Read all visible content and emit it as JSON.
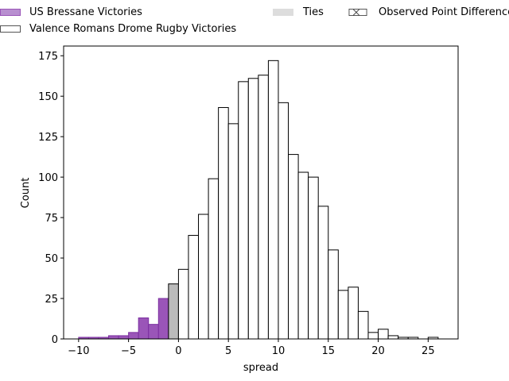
{
  "chart_data": {
    "type": "bar",
    "xlabel": "spread",
    "ylabel": "Count",
    "xlim": [
      -11.5,
      28
    ],
    "ylim": [
      0,
      181
    ],
    "xticks": [
      -10,
      -5,
      0,
      5,
      10,
      15,
      20,
      25
    ],
    "yticks": [
      0,
      25,
      50,
      75,
      100,
      125,
      150,
      175
    ],
    "legend": [
      {
        "label": "US Bressane Victories",
        "color": "#b88fd0",
        "edge": "#9a55b8"
      },
      {
        "label": "Valence Romans Drome Rugby Victories",
        "color": "#ffffff",
        "edge": "#555555"
      },
      {
        "label": "Ties",
        "color": "#dddddd",
        "edge": "#dddddd"
      },
      {
        "label": "Observed Point Difference",
        "color": "#ffffff",
        "edge": "#333333",
        "hatch": "x"
      }
    ],
    "legend_placement": "top, above plot",
    "bin_width": 1,
    "series": [
      {
        "name": "US Bressane Victories",
        "color": "#9a55b8",
        "edge": "#7b2fa0",
        "bins": [
          {
            "x": -9.5,
            "count": 1
          },
          {
            "x": -8.5,
            "count": 1
          },
          {
            "x": -7.5,
            "count": 1
          },
          {
            "x": -6.5,
            "count": 2
          },
          {
            "x": -5.5,
            "count": 2
          },
          {
            "x": -4.5,
            "count": 4
          },
          {
            "x": -3.5,
            "count": 13
          },
          {
            "x": -2.5,
            "count": 9
          },
          {
            "x": -1.5,
            "count": 25
          }
        ]
      },
      {
        "name": "Ties",
        "color": "#bbbbbb",
        "edge": "#000000",
        "bins": [
          {
            "x": -0.5,
            "count": 34
          }
        ]
      },
      {
        "name": "Valence Romans Drome Rugby Victories",
        "color": "#ffffff",
        "edge": "#000000",
        "bins": [
          {
            "x": 0.5,
            "count": 43
          },
          {
            "x": 1.5,
            "count": 64
          },
          {
            "x": 2.5,
            "count": 77
          },
          {
            "x": 3.5,
            "count": 99
          },
          {
            "x": 4.5,
            "count": 143
          },
          {
            "x": 5.5,
            "count": 133
          },
          {
            "x": 6.5,
            "count": 159
          },
          {
            "x": 7.5,
            "count": 161
          },
          {
            "x": 8.5,
            "count": 163
          },
          {
            "x": 9.5,
            "count": 172
          },
          {
            "x": 10.5,
            "count": 146
          },
          {
            "x": 11.5,
            "count": 114
          },
          {
            "x": 12.5,
            "count": 103
          },
          {
            "x": 13.5,
            "count": 100
          },
          {
            "x": 14.5,
            "count": 82
          },
          {
            "x": 15.5,
            "count": 55
          },
          {
            "x": 16.5,
            "count": 30
          },
          {
            "x": 17.5,
            "count": 32
          },
          {
            "x": 18.5,
            "count": 17
          },
          {
            "x": 19.5,
            "count": 4
          },
          {
            "x": 20.5,
            "count": 6
          },
          {
            "x": 21.5,
            "count": 2
          },
          {
            "x": 22.5,
            "count": 1
          },
          {
            "x": 23.5,
            "count": 1
          },
          {
            "x": 25.5,
            "count": 1
          }
        ]
      }
    ]
  }
}
